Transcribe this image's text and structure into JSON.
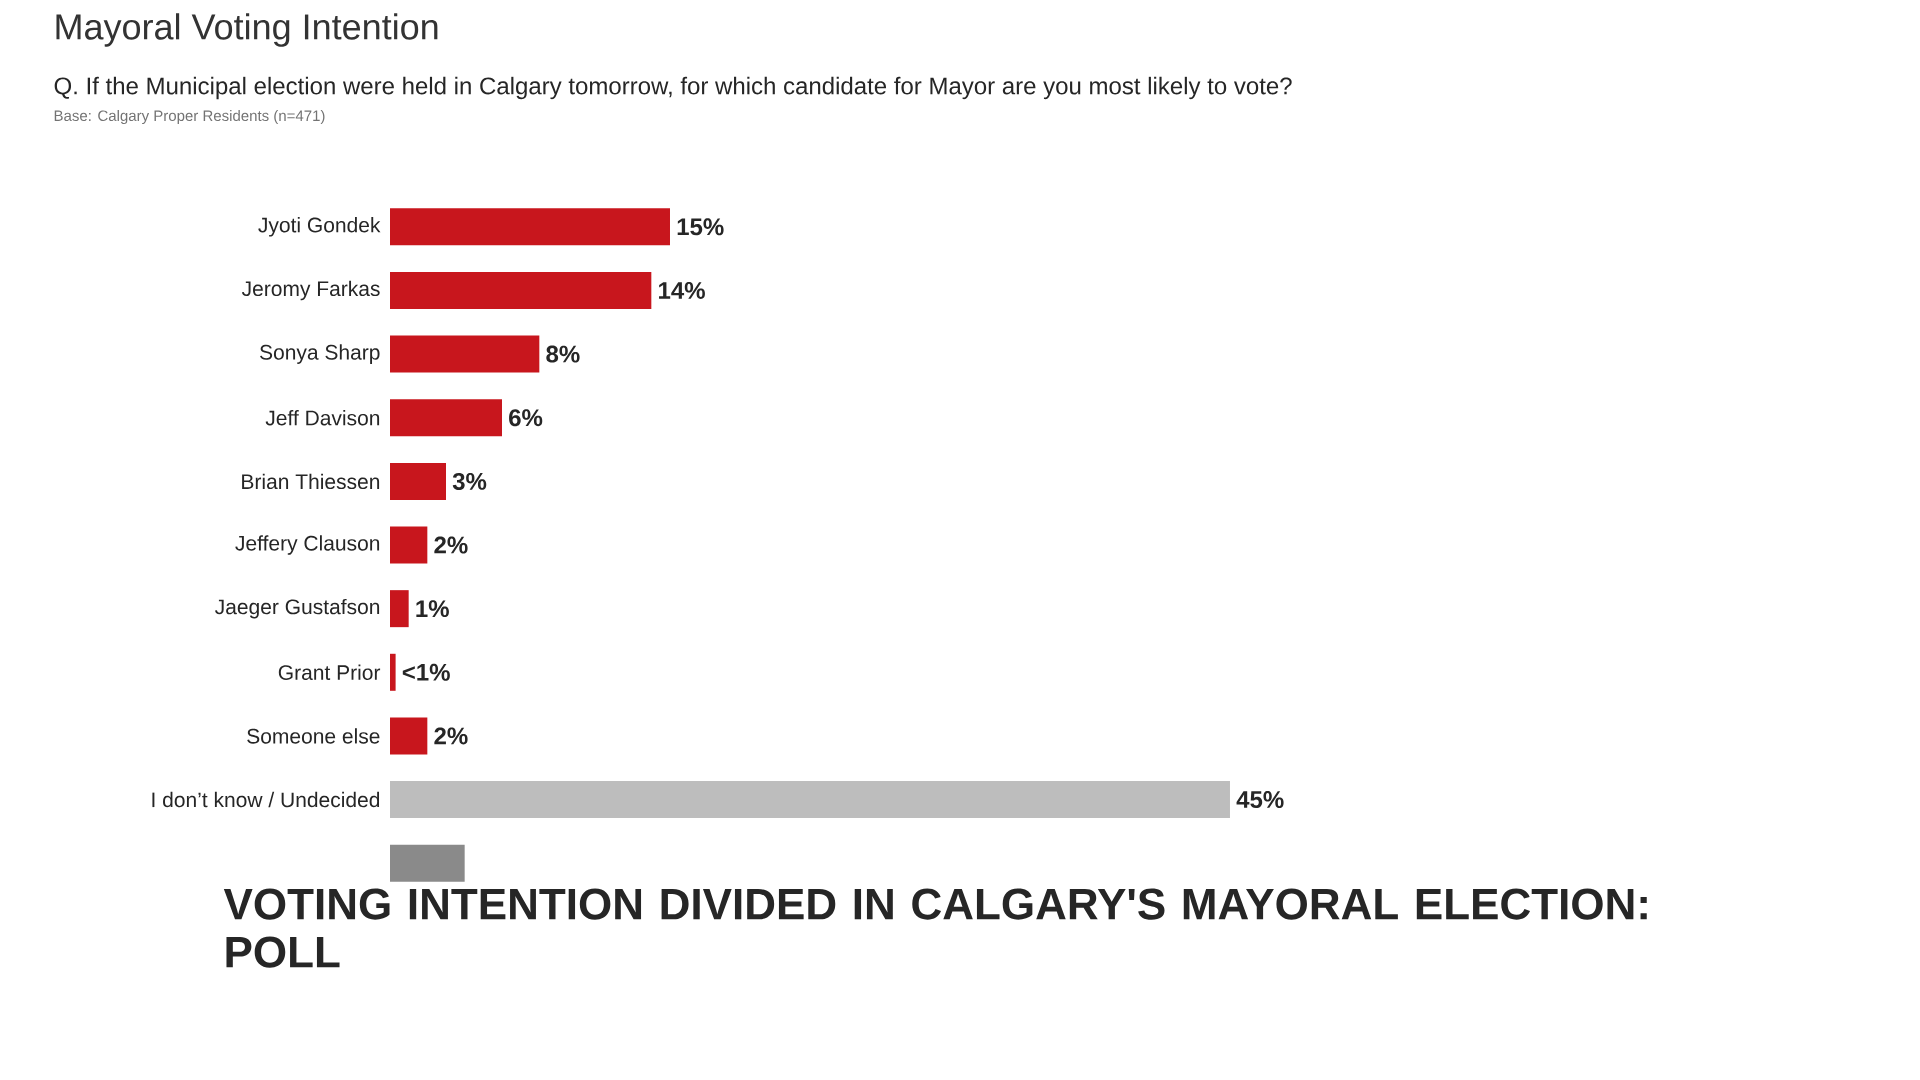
{
  "chart_data": {
    "type": "bar",
    "orientation": "horizontal",
    "title": "Mayoral Voting Intention",
    "subtitle": "Q. If the Municipal election were held in Calgary tomorrow, for which candidate for Mayor are you most likely to vote?",
    "annotations": [
      "Base: Calgary Proper Residents (n=471)",
      "VOTING INTENTION DIVIDED IN CALGARY'S MAYORAL ELECTION: POLL"
    ],
    "categories": [
      "Jyoti Gondek",
      "Jeromy Farkas",
      "Sonya Sharp",
      "Jeff Davison",
      "Brian Thiessen",
      "Jeffery Clauson",
      "Jaeger Gustafson",
      "Grant Prior",
      "Someone else",
      "I don’t know / Undecided",
      null
    ],
    "values": [
      15,
      14,
      8,
      6,
      3,
      2,
      1,
      0.3,
      2,
      45,
      4
    ],
    "colors": [
      "#c8161d",
      "#c8161d",
      "#c8161d",
      "#c8161d",
      "#c8161d",
      "#c8161d",
      "#c8161d",
      "#c8161d",
      "#c8161d",
      "#bdbdbd",
      "#8a8a8a"
    ],
    "value_labels": [
      "15%",
      "14%",
      "8%",
      "6%",
      "3%",
      "2%",
      "1%",
      "<1%",
      "2%",
      "45%",
      null
    ]
  }
}
